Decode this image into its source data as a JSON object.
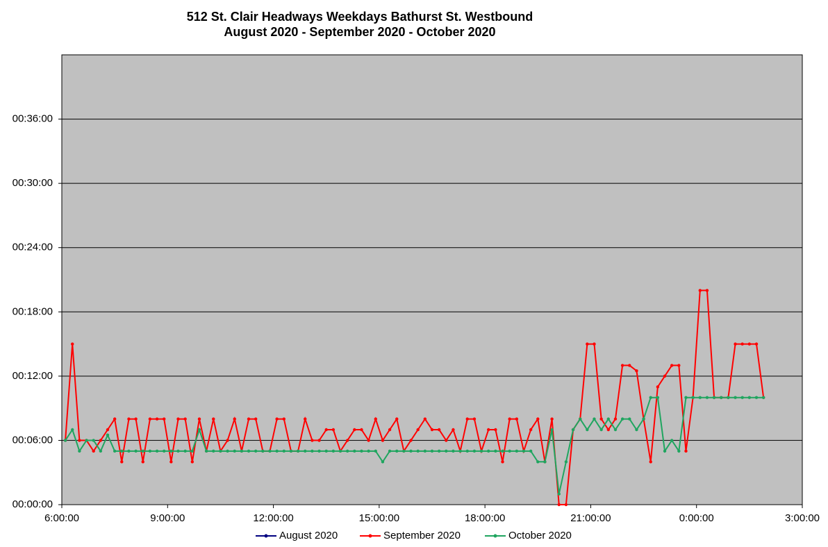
{
  "chart_data": {
    "type": "line",
    "title": "512 St. Clair Headways Weekdays Bathurst St. Westbound",
    "subtitle": "August 2020 - September 2020 - October 2020",
    "x": [
      6.1,
      6.3,
      6.5,
      6.7,
      6.9,
      7.1,
      7.3,
      7.5,
      7.7,
      7.9,
      8.1,
      8.3,
      8.5,
      8.7,
      8.9,
      9.1,
      9.3,
      9.5,
      9.7,
      9.9,
      10.1,
      10.3,
      10.5,
      10.7,
      10.9,
      11.1,
      11.3,
      11.5,
      11.7,
      11.9,
      12.1,
      12.3,
      12.5,
      12.7,
      12.9,
      13.1,
      13.3,
      13.5,
      13.7,
      13.9,
      14.1,
      14.3,
      14.5,
      14.7,
      14.9,
      15.1,
      15.3,
      15.5,
      15.7,
      15.9,
      16.1,
      16.3,
      16.5,
      16.7,
      16.9,
      17.1,
      17.3,
      17.5,
      17.7,
      17.9,
      18.1,
      18.3,
      18.5,
      18.7,
      18.9,
      19.1,
      19.3,
      19.5,
      19.7,
      19.9,
      20.1,
      20.3,
      20.5,
      20.7,
      20.9,
      21.1,
      21.3,
      21.5,
      21.7,
      21.9,
      22.1,
      22.3,
      22.5,
      22.7,
      22.9,
      23.1,
      23.3,
      23.5,
      23.7,
      23.9,
      24.1,
      24.3,
      24.5,
      24.7,
      24.9,
      25.1,
      25.3,
      25.5,
      25.7,
      25.9
    ],
    "series": [
      {
        "name": "August 2020",
        "color": "#000080",
        "values": [
          null,
          null,
          null,
          null,
          null,
          null,
          null,
          null,
          null,
          null,
          null,
          null,
          null,
          null,
          null,
          null,
          null,
          null,
          null,
          null,
          null,
          null,
          null,
          null,
          null,
          null,
          null,
          null,
          null,
          null,
          null,
          null,
          null,
          null,
          null,
          null,
          null,
          null,
          null,
          null,
          null,
          null,
          null,
          null,
          null,
          null,
          null,
          null,
          null,
          null,
          null,
          null,
          null,
          null,
          null,
          null,
          null,
          null,
          null,
          null,
          null,
          null,
          null,
          null,
          null,
          null,
          null,
          null,
          null,
          null,
          null,
          null,
          null,
          null,
          null,
          null,
          null,
          null,
          null,
          null,
          null,
          null,
          null,
          null,
          null,
          null,
          null,
          null,
          null,
          null,
          null,
          null,
          null,
          null,
          null,
          null,
          null,
          null,
          null,
          null
        ]
      },
      {
        "name": "September 2020",
        "color": "#ff0000",
        "values": [
          6,
          15,
          6,
          6,
          5,
          6,
          7,
          8,
          4,
          8,
          8,
          4,
          8,
          8,
          8,
          4,
          8,
          8,
          4,
          8,
          5,
          8,
          5,
          6,
          8,
          5,
          8,
          8,
          5,
          5,
          8,
          8,
          5,
          5,
          8,
          6,
          6,
          7,
          7,
          5,
          6,
          7,
          7,
          6,
          8,
          6,
          7,
          8,
          5,
          6,
          7,
          8,
          7,
          7,
          6,
          7,
          5,
          8,
          8,
          5,
          7,
          7,
          4,
          8,
          8,
          5,
          7,
          8,
          4,
          8,
          0,
          0,
          7,
          8,
          15,
          15,
          8,
          7,
          8,
          13,
          13,
          12.5,
          8,
          4,
          11,
          12,
          13,
          13,
          5,
          10,
          20,
          20,
          10,
          10,
          10,
          15,
          15,
          15,
          15,
          10
        ]
      },
      {
        "name": "October 2020",
        "color": "#1fa55f",
        "values": [
          6,
          7,
          5,
          6,
          6,
          5,
          6.5,
          5,
          5,
          5,
          5,
          5,
          5,
          5,
          5,
          5,
          5,
          5,
          5,
          7,
          5,
          5,
          5,
          5,
          5,
          5,
          5,
          5,
          5,
          5,
          5,
          5,
          5,
          5,
          5,
          5,
          5,
          5,
          5,
          5,
          5,
          5,
          5,
          5,
          5,
          4,
          5,
          5,
          5,
          5,
          5,
          5,
          5,
          5,
          5,
          5,
          5,
          5,
          5,
          5,
          5,
          5,
          5,
          5,
          5,
          5,
          5,
          4,
          4,
          7,
          1,
          4,
          7,
          8,
          7,
          8,
          7,
          8,
          7,
          8,
          8,
          7,
          8,
          10,
          10,
          5,
          6,
          5,
          10,
          10,
          10,
          10,
          10,
          10,
          10,
          10,
          10,
          10,
          10,
          10
        ]
      }
    ],
    "xlim": [
      6,
      27
    ],
    "xticks": [
      {
        "value": 6,
        "label": "6:00:00"
      },
      {
        "value": 9,
        "label": "9:00:00"
      },
      {
        "value": 12,
        "label": "12:00:00"
      },
      {
        "value": 15,
        "label": "15:00:00"
      },
      {
        "value": 18,
        "label": "18:00:00"
      },
      {
        "value": 21,
        "label": "21:00:00"
      },
      {
        "value": 24,
        "label": "0:00:00"
      },
      {
        "value": 27,
        "label": "3:00:00"
      }
    ],
    "ylim": [
      0,
      42
    ],
    "yticks": [
      {
        "value": 0,
        "label": "00:00:00"
      },
      {
        "value": 6,
        "label": "00:06:00"
      },
      {
        "value": 12,
        "label": "00:12:00"
      },
      {
        "value": 18,
        "label": "00:18:00"
      },
      {
        "value": 24,
        "label": "00:24:00"
      },
      {
        "value": 30,
        "label": "00:30:00"
      },
      {
        "value": 36,
        "label": "00:36:00"
      }
    ],
    "grid": true,
    "legend": "bottom"
  }
}
